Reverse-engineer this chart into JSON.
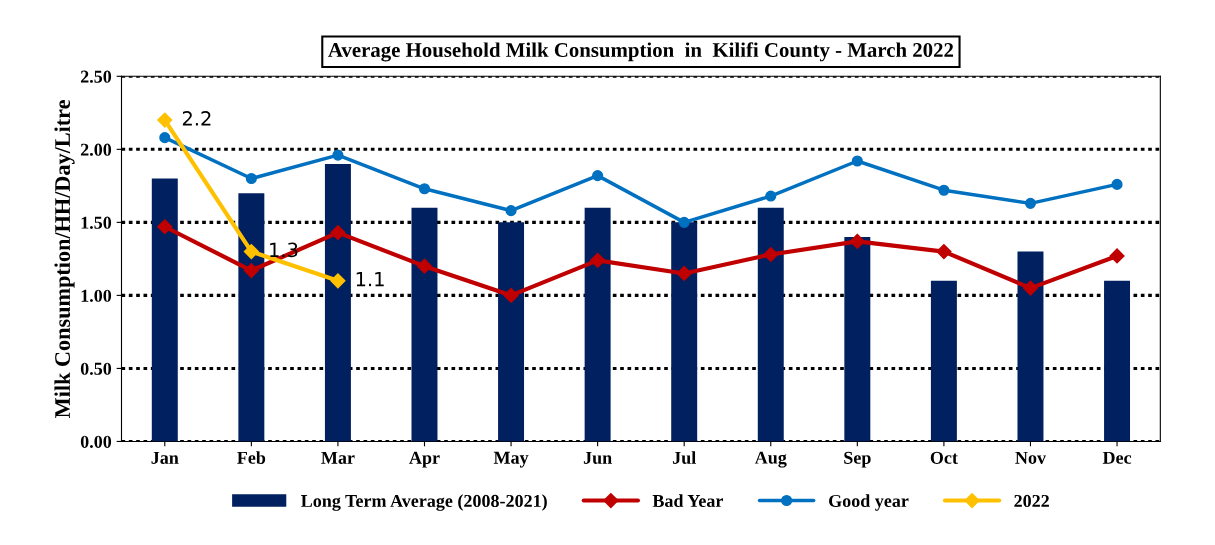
{
  "chart_data": {
    "type": "bar",
    "title": "Average Household Milk Consumption  in  Kilifi County - March 2022",
    "ylabel": "Milk Consumption/HH/Day/Litre",
    "categories": [
      "Jan",
      "Feb",
      "Mar",
      "Apr",
      "May",
      "Jun",
      "Jul",
      "Aug",
      "Sep",
      "Oct",
      "Nov",
      "Dec"
    ],
    "series": [
      {
        "name": "Long Term Average (2008-2021)",
        "color": "#002060",
        "values": [
          1.8,
          1.7,
          1.9,
          1.6,
          1.5,
          1.6,
          1.5,
          1.6,
          1.4,
          1.1,
          1.3,
          1.1
        ]
      },
      {
        "name": "Bad Year",
        "type": "line",
        "color": "#c00000",
        "marker": "diamond",
        "values": [
          1.47,
          1.17,
          1.43,
          1.2,
          1.0,
          1.24,
          1.15,
          1.28,
          1.37,
          1.3,
          1.05,
          1.27
        ]
      },
      {
        "name": "Good year",
        "type": "line",
        "color": "#0070c0",
        "marker": "circle",
        "values": [
          2.08,
          1.8,
          1.96,
          1.73,
          1.58,
          1.82,
          1.5,
          1.68,
          1.92,
          1.72,
          1.63,
          1.76
        ]
      },
      {
        "name": "2022",
        "type": "line",
        "color": "#ffc000",
        "marker": "diamond",
        "values": [
          2.2,
          1.3,
          1.1,
          null,
          null,
          null,
          null,
          null,
          null,
          null,
          null,
          null
        ],
        "value_labels": [
          "2.2",
          "1.3",
          "1.1",
          null,
          null,
          null,
          null,
          null,
          null,
          null,
          null,
          null
        ]
      }
    ],
    "ylim": [
      0,
      2.5
    ],
    "yticks": [
      {
        "value": 0,
        "label": "0.00"
      },
      {
        "value": 0.5,
        "label": "0.50"
      },
      {
        "value": 1.0,
        "label": "1.00"
      },
      {
        "value": 1.5,
        "label": "1.50"
      },
      {
        "value": 2.0,
        "label": "2.00"
      },
      {
        "value": 2.5,
        "label": "2.50"
      }
    ],
    "grid": "y",
    "legend": "bottom"
  }
}
